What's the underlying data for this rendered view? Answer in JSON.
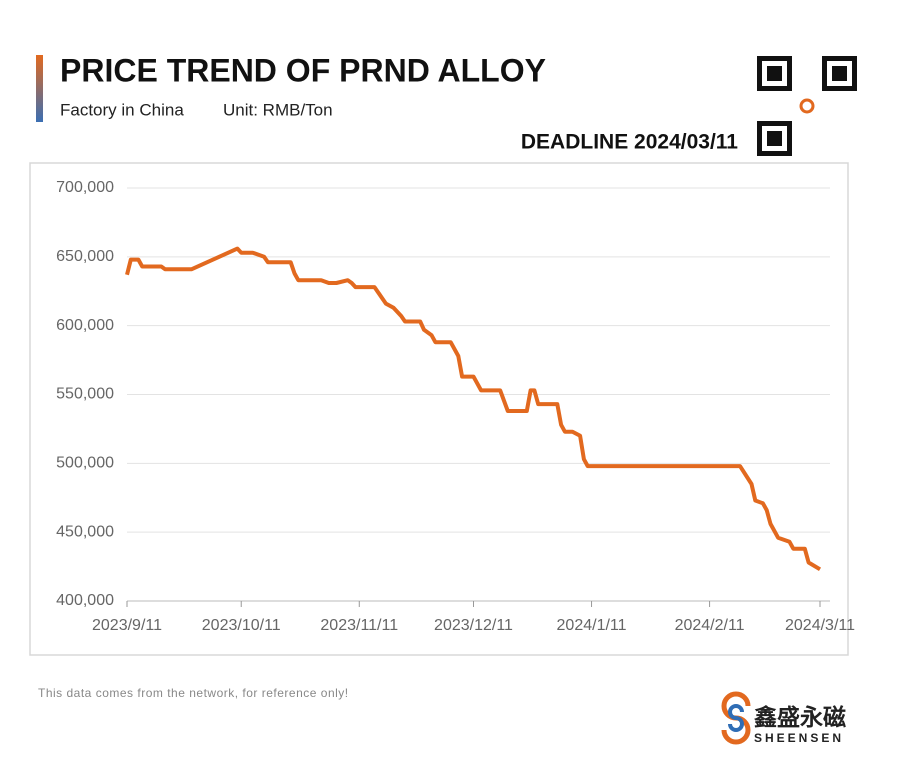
{
  "header": {
    "title": "PRICE TREND OF PRND ALLOY",
    "subtitle": "Factory in China",
    "unit": "Unit: RMB/Ton",
    "deadline": "DEADLINE 2024/03/11"
  },
  "chart_data": {
    "type": "line",
    "color": "#e2691f",
    "grid": true,
    "x": [
      "2023-09-11",
      "2023-09-12",
      "2023-09-14",
      "2023-09-15",
      "2023-09-20",
      "2023-09-21",
      "2023-09-28",
      "2023-10-10",
      "2023-10-11",
      "2023-10-14",
      "2023-10-17",
      "2023-10-18",
      "2023-10-24",
      "2023-10-25",
      "2023-10-26",
      "2023-11-01",
      "2023-11-03",
      "2023-11-05",
      "2023-11-08",
      "2023-11-09",
      "2023-11-10",
      "2023-11-15",
      "2023-11-16",
      "2023-11-18",
      "2023-11-20",
      "2023-11-22",
      "2023-11-23",
      "2023-11-27",
      "2023-11-28",
      "2023-11-30",
      "2023-12-01",
      "2023-12-05",
      "2023-12-07",
      "2023-12-08",
      "2023-12-11",
      "2023-12-13",
      "2023-12-18",
      "2023-12-20",
      "2023-12-25",
      "2023-12-26",
      "2023-12-27",
      "2023-12-28",
      "2024-01-02",
      "2024-01-03",
      "2024-01-04",
      "2024-01-06",
      "2024-01-08",
      "2024-01-09",
      "2024-01-10",
      "2024-02-19",
      "2024-02-22",
      "2024-02-23",
      "2024-02-25",
      "2024-02-26",
      "2024-02-27",
      "2024-02-29",
      "2024-03-03",
      "2024-03-04",
      "2024-03-07",
      "2024-03-08",
      "2024-03-11"
    ],
    "values": [
      637000,
      648000,
      648000,
      643000,
      643000,
      641000,
      641000,
      656000,
      653000,
      653000,
      650000,
      646000,
      646000,
      638000,
      633000,
      633000,
      631000,
      631000,
      633000,
      631000,
      628000,
      628000,
      624000,
      616000,
      613000,
      607000,
      603000,
      603000,
      597000,
      593000,
      588000,
      588000,
      578000,
      563000,
      563000,
      553000,
      553000,
      538000,
      538000,
      553000,
      553000,
      543000,
      543000,
      528000,
      523000,
      523000,
      520000,
      503000,
      498000,
      498000,
      485000,
      473000,
      471000,
      466000,
      456000,
      446000,
      443000,
      438000,
      438000,
      428000,
      423000
    ],
    "xlim": [
      "2023-09-11",
      "2024-03-11"
    ],
    "xticks": [
      {
        "value": "2023-09-11",
        "label": "2023/9/11"
      },
      {
        "value": "2023-10-11",
        "label": "2023/10/11"
      },
      {
        "value": "2023-11-11",
        "label": "2023/11/11"
      },
      {
        "value": "2023-12-11",
        "label": "2023/12/11"
      },
      {
        "value": "2024-01-11",
        "label": "2024/1/11"
      },
      {
        "value": "2024-02-11",
        "label": "2024/2/11"
      },
      {
        "value": "2024-03-11",
        "label": "2024/3/11"
      }
    ],
    "ylim": [
      400000,
      700000
    ],
    "yticks": [
      {
        "value": 400000,
        "label": "400,000"
      },
      {
        "value": 450000,
        "label": "450,000"
      },
      {
        "value": 500000,
        "label": "500,000"
      },
      {
        "value": 550000,
        "label": "550,000"
      },
      {
        "value": 600000,
        "label": "600,000"
      },
      {
        "value": 650000,
        "label": "650,000"
      },
      {
        "value": 700000,
        "label": "700,000"
      }
    ]
  },
  "footer": {
    "note": "This data comes from the network, for reference only!",
    "brand": "鑫盛永磁",
    "brand_en": "SHEENSEN"
  }
}
